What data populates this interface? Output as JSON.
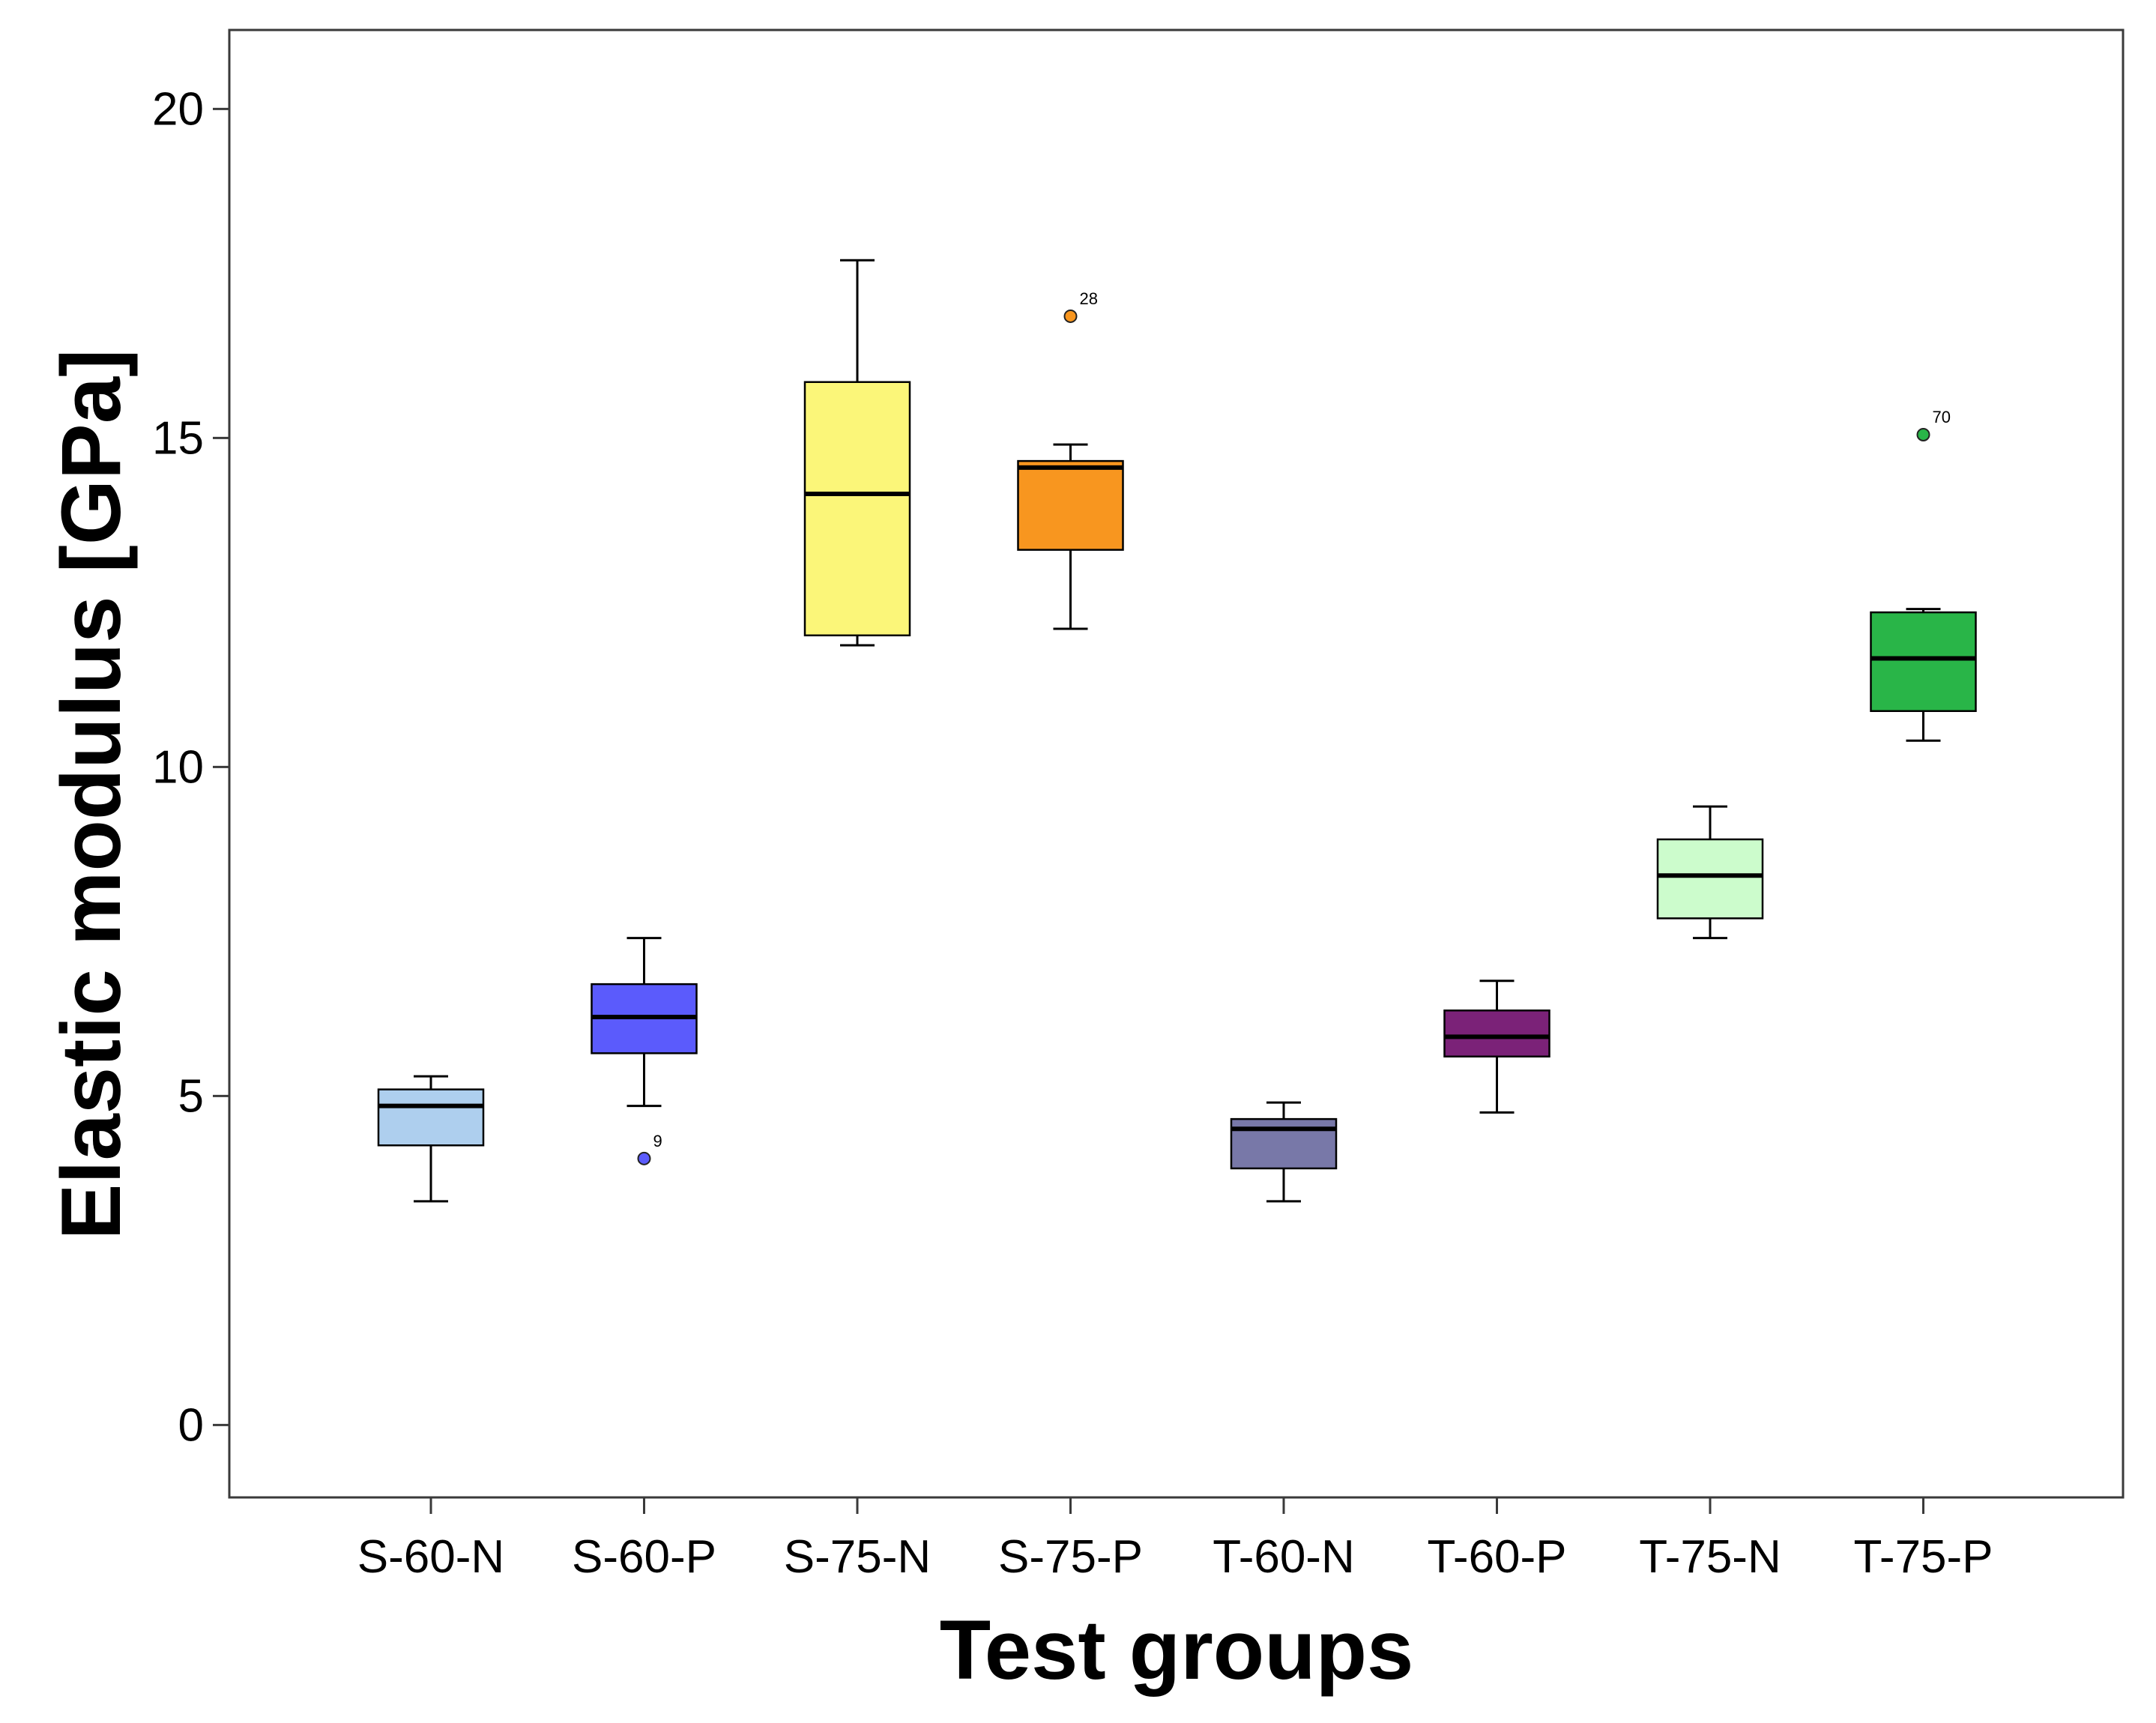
{
  "chart_data": {
    "type": "boxplot",
    "title": "",
    "xlabel": "Test groups",
    "ylabel": "Elastic modulus [GPa]",
    "ylim": [
      -1.1,
      21.2
    ],
    "yticks": [
      0,
      5,
      10,
      15,
      20
    ],
    "categories": [
      "S-60-N",
      "S-60-P",
      "S-75-N",
      "S-75-P",
      "T-60-N",
      "T-60-P",
      "T-75-N",
      "T-75-P"
    ],
    "boxes": [
      {
        "name": "S-60-N",
        "color": "#aecfee",
        "whisker_low": 3.4,
        "q1": 4.25,
        "median": 4.85,
        "q3": 5.1,
        "whisker_high": 5.3,
        "outliers": []
      },
      {
        "name": "S-60-P",
        "color": "#5b5bfc",
        "whisker_low": 4.85,
        "q1": 5.65,
        "median": 6.2,
        "q3": 6.7,
        "whisker_high": 7.4,
        "outliers": [
          {
            "value": 4.05,
            "label": "9"
          }
        ]
      },
      {
        "name": "S-75-N",
        "color": "#fbf679",
        "whisker_low": 11.85,
        "q1": 12.0,
        "median": 14.15,
        "q3": 15.85,
        "whisker_high": 17.7,
        "outliers": []
      },
      {
        "name": "S-75-P",
        "color": "#f8961f",
        "whisker_low": 12.1,
        "q1": 13.3,
        "median": 14.55,
        "q3": 14.65,
        "whisker_high": 14.9,
        "outliers": [
          {
            "value": 16.85,
            "label": "28"
          }
        ]
      },
      {
        "name": "T-60-N",
        "color": "#7878a8",
        "whisker_low": 3.4,
        "q1": 3.9,
        "median": 4.5,
        "q3": 4.65,
        "whisker_high": 4.9,
        "outliers": []
      },
      {
        "name": "T-60-P",
        "color": "#7b2278",
        "whisker_low": 4.75,
        "q1": 5.6,
        "median": 5.9,
        "q3": 6.3,
        "whisker_high": 6.75,
        "outliers": []
      },
      {
        "name": "T-75-N",
        "color": "#ccfccc",
        "whisker_low": 7.4,
        "q1": 7.7,
        "median": 8.35,
        "q3": 8.9,
        "whisker_high": 9.4,
        "outliers": []
      },
      {
        "name": "T-75-P",
        "color": "#29b548",
        "whisker_low": 10.4,
        "q1": 10.85,
        "median": 11.65,
        "q3": 12.35,
        "whisker_high": 12.4,
        "outliers": [
          {
            "value": 15.05,
            "label": "70"
          }
        ]
      }
    ]
  }
}
